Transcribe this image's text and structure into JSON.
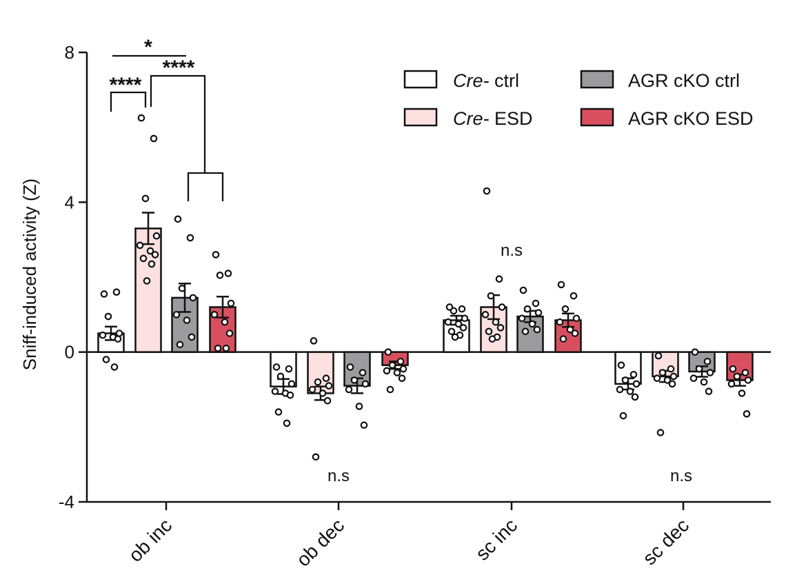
{
  "chart_data": {
    "type": "bar",
    "title": "",
    "xlabel": "",
    "ylabel": "Sniff-induced activity (Z)",
    "ylim": [
      -4,
      8
    ],
    "yticks": [
      -4,
      0,
      4,
      8
    ],
    "yticklabels": [
      "-4",
      "0",
      "4",
      "8"
    ],
    "grid": false,
    "legend_position": "top-right",
    "categories": [
      "ob inc",
      "ob dec",
      "sc inc",
      "sc dec"
    ],
    "series": [
      {
        "name_italic": "Cre-",
        "name_rest": " ctrl",
        "name": "Cre- ctrl",
        "color": "#ffffff",
        "values": [
          0.5,
          -0.92,
          0.85,
          -0.85
        ],
        "sem": [
          0.18,
          0.2,
          0.12,
          0.15
        ],
        "points": [
          [
            1.55,
            1.6,
            0.95,
            0.5,
            0.45,
            0.4,
            0.35,
            -0.2,
            -0.4
          ],
          [
            -0.4,
            -0.45,
            -0.65,
            -0.85,
            -1.05,
            -1.1,
            -1.15,
            -1.6,
            -1.9
          ],
          [
            1.2,
            1.15,
            1.1,
            0.9,
            0.8,
            0.75,
            0.65,
            0.55,
            0.45,
            0.4
          ],
          [
            -0.35,
            -0.6,
            -0.75,
            -0.85,
            -1.0,
            -1.05,
            -1.2,
            -1.7
          ]
        ]
      },
      {
        "name_italic": "Cre-",
        "name_rest": " ESD",
        "name": "Cre- ESD",
        "color": "#fde0e0",
        "values": [
          3.3,
          -1.1,
          1.2,
          -0.65
        ],
        "sem": [
          0.42,
          0.18,
          0.32,
          0.15
        ],
        "points": [
          [
            6.25,
            5.7,
            4.1,
            3.1,
            2.85,
            2.7,
            2.6,
            2.5,
            2.35,
            1.9
          ],
          [
            0.3,
            -0.7,
            -0.8,
            -0.9,
            -1.0,
            -1.1,
            -1.3,
            -2.8
          ],
          [
            4.3,
            1.95,
            1.5,
            1.2,
            1.0,
            0.8,
            0.65,
            0.55,
            0.4,
            0.35
          ],
          [
            -0.1,
            -0.45,
            -0.55,
            -0.65,
            -0.7,
            -0.75,
            -0.85,
            -2.15
          ]
        ]
      },
      {
        "name_italic": "",
        "name_rest": "AGR cKO ctrl",
        "name": "AGR cKO ctrl",
        "color": "#9c9c9e",
        "values": [
          1.45,
          -0.9,
          0.95,
          -0.52
        ],
        "sem": [
          0.38,
          0.2,
          0.15,
          0.14
        ],
        "points": [
          [
            3.55,
            3.05,
            1.7,
            1.45,
            1.0,
            0.85,
            0.4,
            0.2
          ],
          [
            -0.4,
            -0.55,
            -0.75,
            -0.85,
            -1.0,
            -1.45,
            -1.95
          ],
          [
            1.65,
            1.3,
            1.15,
            1.05,
            0.9,
            0.75,
            0.6,
            0.55
          ],
          [
            0.0,
            -0.25,
            -0.45,
            -0.55,
            -0.7,
            -0.8,
            -1.05
          ]
        ]
      },
      {
        "name_italic": "",
        "name_rest": "AGR cKO ESD",
        "name": "AGR cKO ESD",
        "color": "#d8505f",
        "values": [
          1.2,
          -0.35,
          0.85,
          -0.75
        ],
        "sem": [
          0.28,
          0.1,
          0.18,
          0.15
        ],
        "points": [
          [
            2.6,
            2.1,
            2.05,
            1.3,
            1.0,
            0.8,
            0.5,
            0.1,
            0.1
          ],
          [
            0.0,
            -0.25,
            -0.35,
            -0.45,
            -0.5,
            -0.55,
            -0.7,
            -1.0
          ],
          [
            1.8,
            1.5,
            1.15,
            0.9,
            0.8,
            0.6,
            0.5,
            0.35
          ],
          [
            -0.45,
            -0.55,
            -0.65,
            -0.75,
            -0.85,
            -1.1,
            -1.65
          ]
        ]
      }
    ],
    "annotations": [
      {
        "id": "stars-a",
        "text": "*"
      },
      {
        "id": "stars-b",
        "text": "****"
      },
      {
        "id": "stars-c",
        "text": "****"
      },
      {
        "id": "ns-ob-dec",
        "text": "n.s"
      },
      {
        "id": "ns-sc-inc",
        "text": "n.s"
      },
      {
        "id": "ns-sc-dec",
        "text": "n.s"
      }
    ]
  }
}
